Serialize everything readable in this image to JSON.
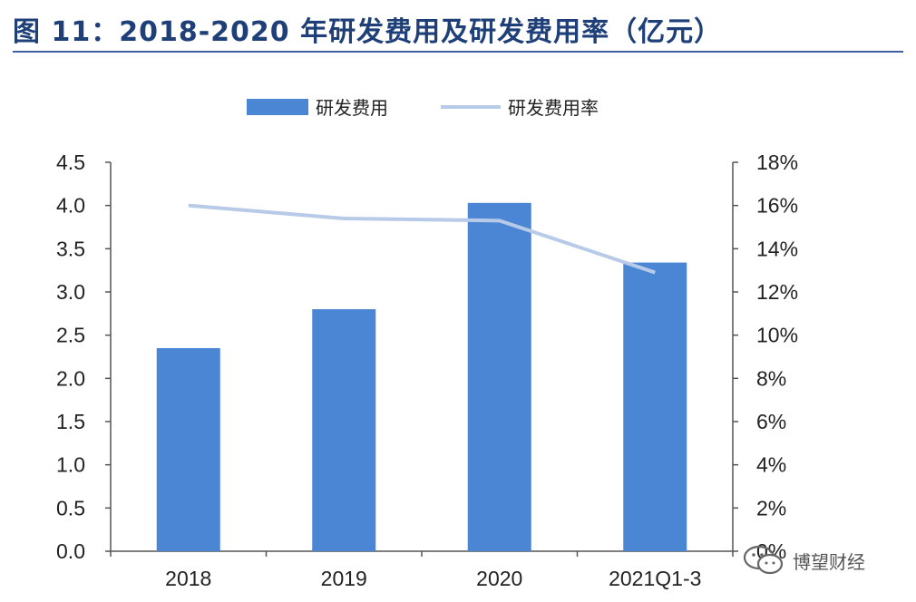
{
  "title": "图 11：2018-2020 年研发费用及研发费用率（亿元）",
  "watermark": {
    "text": "博望财经",
    "icon": "wechat-icon"
  },
  "colors": {
    "bar": "#4a86d4",
    "line": "#b7cbe8",
    "title": "#1f3f78",
    "axis": "#444444"
  },
  "chart_data": {
    "type": "bar",
    "categories": [
      "2018",
      "2019",
      "2020",
      "2021Q1-3"
    ],
    "series": [
      {
        "name": "研发费用",
        "type": "bar",
        "axis": "left",
        "values": [
          2.35,
          2.8,
          4.03,
          3.34
        ]
      },
      {
        "name": "研发费用率",
        "type": "line",
        "axis": "right",
        "values": [
          16.0,
          15.4,
          15.3,
          12.9
        ]
      }
    ],
    "ylim_left": [
      0,
      4.5
    ],
    "yticks_left": [
      "0.0",
      "0.5",
      "1.0",
      "1.5",
      "2.0",
      "2.5",
      "3.0",
      "3.5",
      "4.0",
      "4.5"
    ],
    "ylim_right": [
      0,
      18
    ],
    "yticks_right": [
      "0%",
      "2%",
      "4%",
      "6%",
      "8%",
      "10%",
      "12%",
      "14%",
      "16%",
      "18%"
    ],
    "legend_position": "top-center",
    "grid": false
  }
}
